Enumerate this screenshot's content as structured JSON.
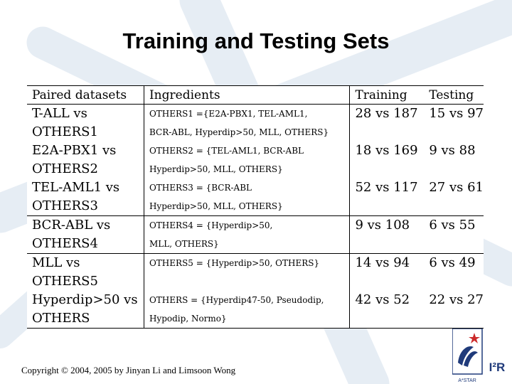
{
  "slide": {
    "title": "Training and Testing Sets",
    "copyright": "Copyright © 2004, 2005 by Jinyan Li and Limsoon Wong",
    "logo": {
      "label": "I²R",
      "sub": "A*STAR"
    }
  },
  "table": {
    "headers": [
      "Paired datasets",
      "Ingredients",
      "Training",
      "Testing"
    ],
    "rows": [
      {
        "paired": [
          "T-ALL vs",
          "OTHERS1"
        ],
        "ingredients": [
          "OTHERS1 ={E2A-PBX1, TEL-AML1,",
          "BCR-ABL, Hyperdip>50, MLL, OTHERS}"
        ],
        "training": "28 vs 187",
        "testing": "15 vs 97"
      },
      {
        "paired": [
          "E2A-PBX1 vs",
          "OTHERS2"
        ],
        "ingredients": [
          "OTHERS2 = {TEL-AML1, BCR-ABL",
          "Hyperdip>50, MLL, OTHERS}"
        ],
        "training": "18 vs 169",
        "testing": "9 vs 88"
      },
      {
        "paired": [
          "TEL-AML1 vs",
          "OTHERS3"
        ],
        "ingredients": [
          "OTHERS3 = {BCR-ABL",
          "Hyperdip>50, MLL, OTHERS}"
        ],
        "training": "52 vs 117",
        "testing": "27 vs 61"
      },
      {
        "paired": [
          "BCR-ABL vs",
          "OTHERS4"
        ],
        "ingredients": [
          "OTHERS4 = {Hyperdip>50,",
          "MLL, OTHERS}"
        ],
        "training": "9 vs 108",
        "testing": "6 vs 55"
      },
      {
        "paired": [
          "MLL vs",
          "OTHERS5"
        ],
        "ingredients": [
          "OTHERS5 = {Hyperdip>50, OTHERS}",
          ""
        ],
        "training": "14 vs 94",
        "testing": "6 vs 49"
      },
      {
        "paired": [
          "Hyperdip>50 vs",
          "OTHERS"
        ],
        "ingredients": [
          "OTHERS = {Hyperdip47-50, Pseudodip,",
          "Hypodip, Normo}"
        ],
        "training": "42 vs 52",
        "testing": "22 vs 27"
      }
    ]
  }
}
